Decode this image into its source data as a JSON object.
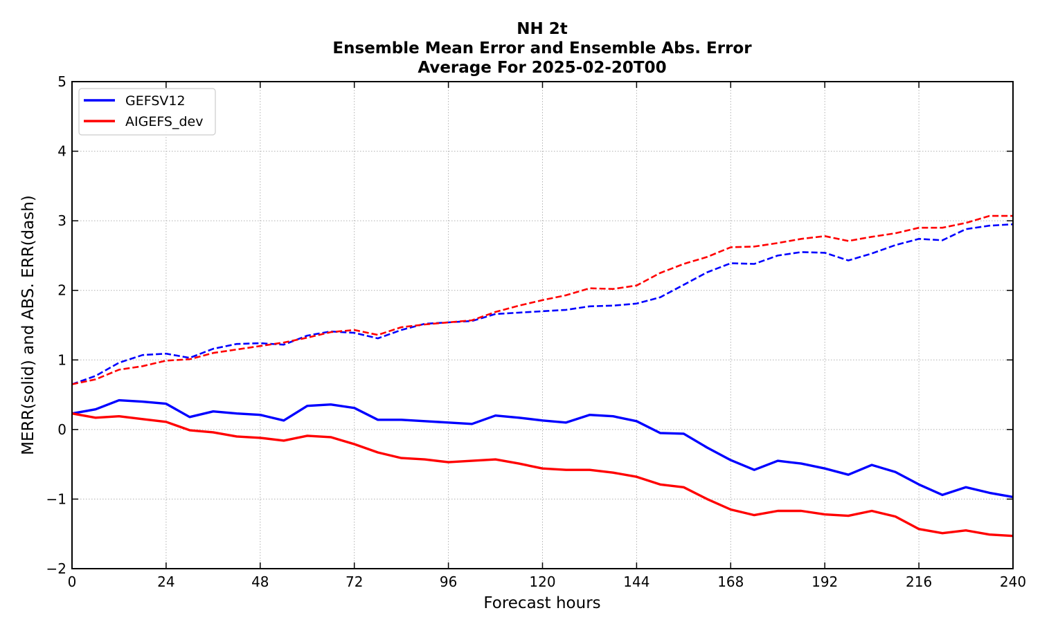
{
  "chart_data": {
    "type": "line",
    "title": [
      "NH 2t",
      "Ensemble Mean Error and Ensemble Abs. Error",
      "Average For 2025-02-20T00"
    ],
    "xlabel": "Forecast hours",
    "ylabel": "MERR(solid) and ABS. ERR(dash)",
    "xlim": [
      0,
      240
    ],
    "ylim": [
      -2,
      5
    ],
    "xticks": [
      0,
      24,
      48,
      72,
      96,
      120,
      144,
      168,
      192,
      216,
      240
    ],
    "yticks": [
      -2,
      -1,
      0,
      1,
      2,
      3,
      4,
      5
    ],
    "ytick_labels": [
      "−2",
      "−1",
      "0",
      "1",
      "2",
      "3",
      "4",
      "5"
    ],
    "grid": true,
    "legend_position": "top-left",
    "x": [
      0,
      6,
      12,
      18,
      24,
      30,
      36,
      42,
      48,
      54,
      60,
      66,
      72,
      78,
      84,
      90,
      96,
      102,
      108,
      114,
      120,
      126,
      132,
      138,
      144,
      150,
      156,
      162,
      168,
      174,
      180,
      186,
      192,
      198,
      204,
      210,
      216,
      222,
      228,
      234,
      240
    ],
    "series": [
      {
        "name": "GEFSV12",
        "color": "#0000ff",
        "mean_error": [
          0.23,
          0.29,
          0.42,
          0.4,
          0.37,
          0.18,
          0.26,
          0.23,
          0.21,
          0.13,
          0.34,
          0.36,
          0.31,
          0.14,
          0.14,
          0.12,
          0.1,
          0.08,
          0.2,
          0.17,
          0.13,
          0.1,
          0.21,
          0.19,
          0.12,
          -0.05,
          -0.06,
          -0.26,
          -0.44,
          -0.58,
          -0.45,
          -0.49,
          -0.56,
          -0.65,
          -0.51,
          -0.61,
          -0.79,
          -0.94,
          -0.83,
          -0.91,
          -0.97
        ],
        "abs_error": [
          0.65,
          0.77,
          0.96,
          1.07,
          1.09,
          1.03,
          1.16,
          1.23,
          1.24,
          1.22,
          1.35,
          1.41,
          1.39,
          1.31,
          1.43,
          1.52,
          1.54,
          1.56,
          1.66,
          1.68,
          1.7,
          1.72,
          1.77,
          1.78,
          1.81,
          1.9,
          2.08,
          2.26,
          2.39,
          2.38,
          2.5,
          2.55,
          2.54,
          2.43,
          2.53,
          2.65,
          2.74,
          2.72,
          2.88,
          2.93,
          2.95
        ]
      },
      {
        "name": "AIGEFS_dev",
        "color": "#ff0000",
        "mean_error": [
          0.23,
          0.17,
          0.19,
          0.15,
          0.11,
          -0.01,
          -0.04,
          -0.1,
          -0.12,
          -0.16,
          -0.09,
          -0.11,
          -0.21,
          -0.33,
          -0.41,
          -0.43,
          -0.47,
          -0.45,
          -0.43,
          -0.49,
          -0.56,
          -0.58,
          -0.58,
          -0.62,
          -0.68,
          -0.79,
          -0.83,
          -1.0,
          -1.15,
          -1.23,
          -1.17,
          -1.17,
          -1.22,
          -1.24,
          -1.17,
          -1.25,
          -1.43,
          -1.49,
          -1.45,
          -1.51,
          -1.53
        ],
        "abs_error": [
          0.65,
          0.72,
          0.86,
          0.91,
          0.99,
          1.01,
          1.1,
          1.15,
          1.2,
          1.25,
          1.32,
          1.4,
          1.43,
          1.36,
          1.47,
          1.51,
          1.54,
          1.57,
          1.69,
          1.78,
          1.86,
          1.93,
          2.03,
          2.02,
          2.07,
          2.25,
          2.38,
          2.48,
          2.62,
          2.63,
          2.68,
          2.74,
          2.78,
          2.71,
          2.77,
          2.82,
          2.9,
          2.9,
          2.97,
          3.07,
          3.07
        ]
      }
    ]
  }
}
